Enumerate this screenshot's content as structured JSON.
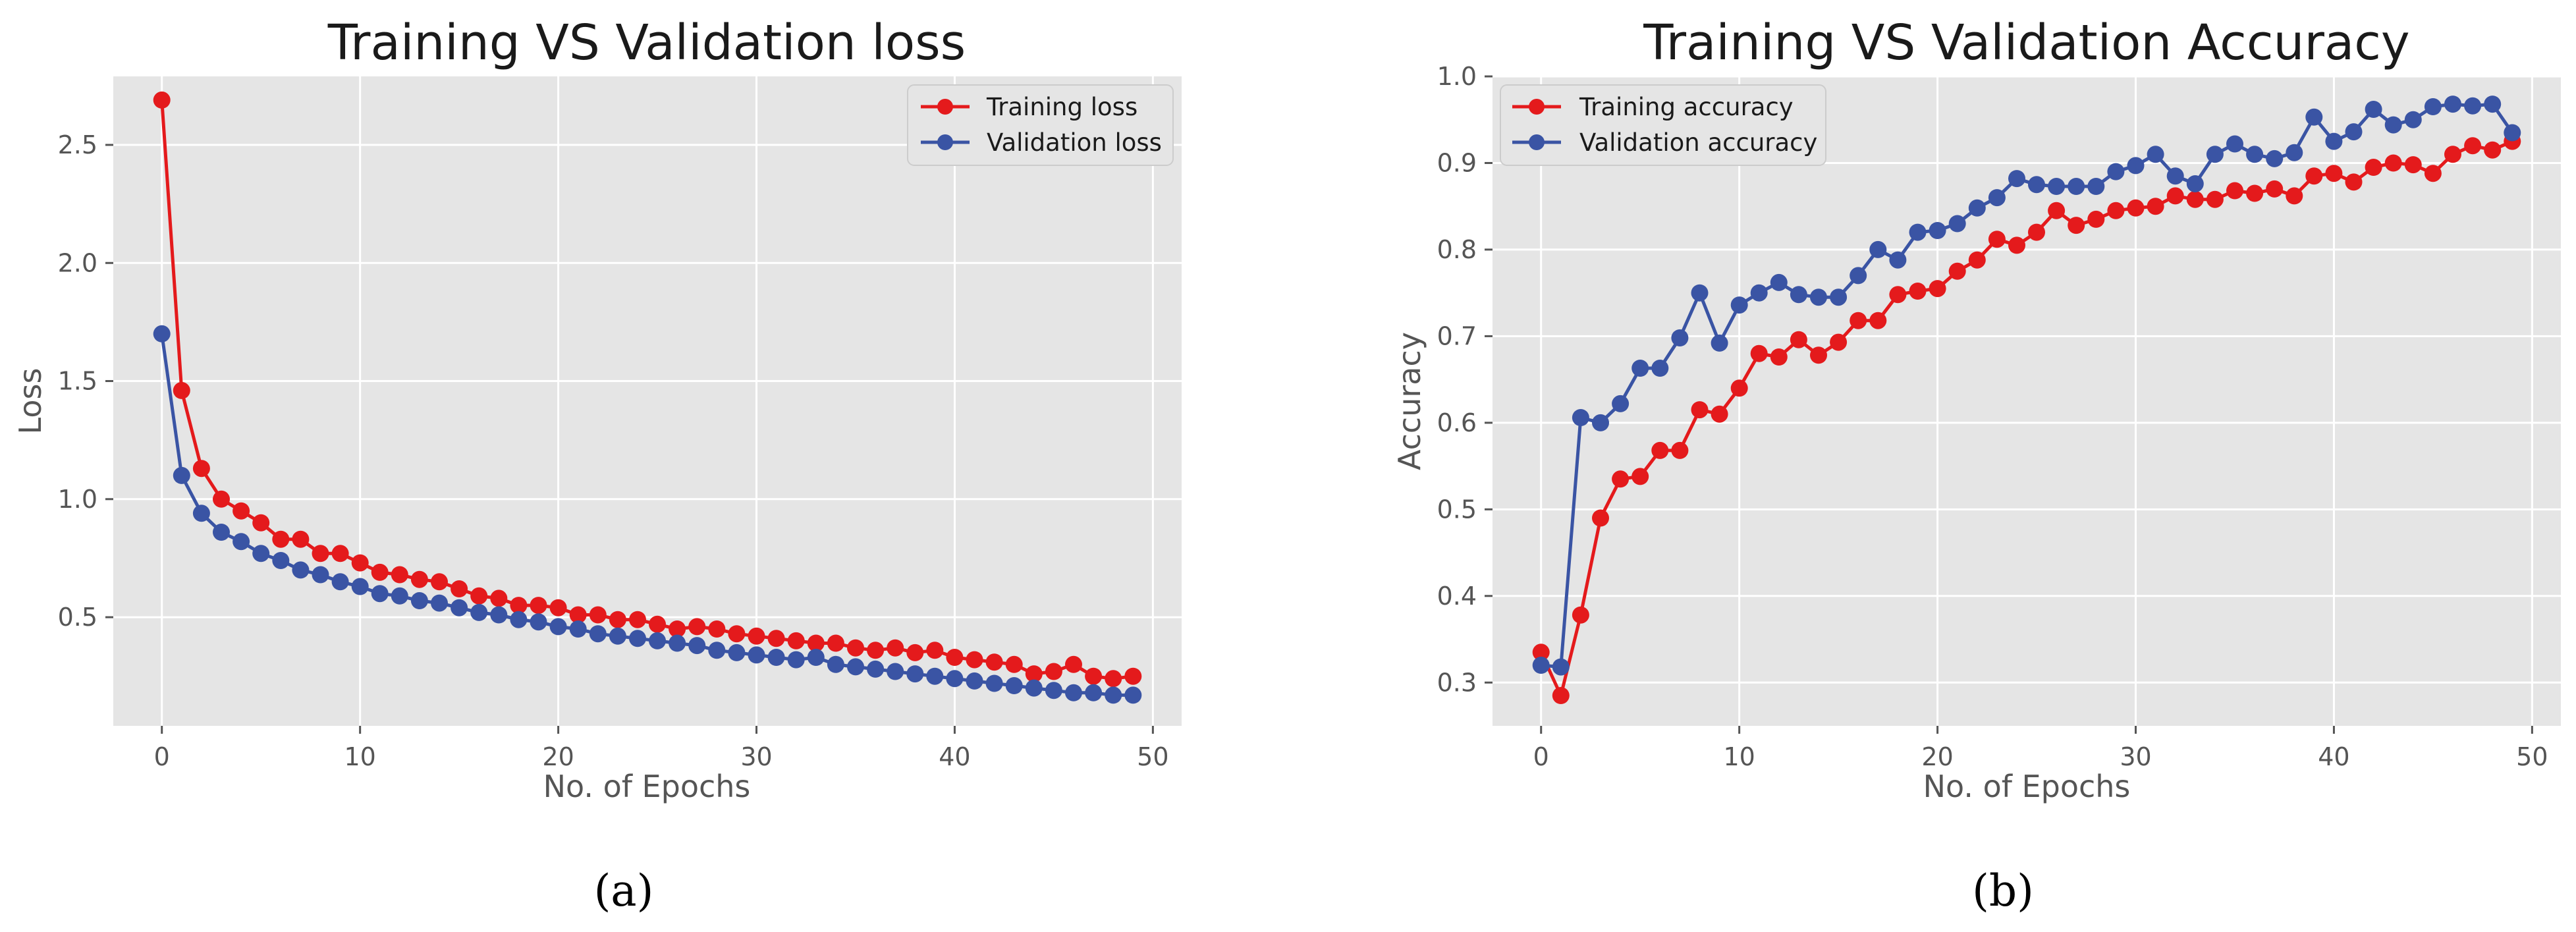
{
  "chart_data": [
    {
      "type": "line",
      "title": "Training VS Validation loss",
      "xlabel": "No. of Epochs",
      "ylabel": "Loss",
      "xlim": [
        -2.45,
        51.45
      ],
      "ylim": [
        0.04,
        2.79
      ],
      "xticks": [
        0,
        10,
        20,
        30,
        40,
        50
      ],
      "yticks": [
        0.5,
        1.0,
        1.5,
        2.0,
        2.5
      ],
      "ytick_labels": [
        "0.5",
        "1.0",
        "1.5",
        "2.0",
        "2.5"
      ],
      "grid": true,
      "legend_position": "top-right",
      "caption": "(a)",
      "series": [
        {
          "name": "Training loss",
          "color": "#e41a1c",
          "x": [
            0,
            1,
            2,
            3,
            4,
            5,
            6,
            7,
            8,
            9,
            10,
            11,
            12,
            13,
            14,
            15,
            16,
            17,
            18,
            19,
            20,
            21,
            22,
            23,
            24,
            25,
            26,
            27,
            28,
            29,
            30,
            31,
            32,
            33,
            34,
            35,
            36,
            37,
            38,
            39,
            40,
            41,
            42,
            43,
            44,
            45,
            46,
            47,
            48,
            49
          ],
          "values": [
            2.69,
            1.46,
            1.13,
            1.0,
            0.95,
            0.9,
            0.83,
            0.83,
            0.77,
            0.77,
            0.73,
            0.69,
            0.68,
            0.66,
            0.65,
            0.62,
            0.59,
            0.58,
            0.55,
            0.55,
            0.54,
            0.51,
            0.51,
            0.49,
            0.49,
            0.47,
            0.45,
            0.46,
            0.45,
            0.43,
            0.42,
            0.41,
            0.4,
            0.39,
            0.39,
            0.37,
            0.36,
            0.37,
            0.35,
            0.36,
            0.33,
            0.32,
            0.31,
            0.3,
            0.26,
            0.27,
            0.3,
            0.25,
            0.24,
            0.25
          ]
        },
        {
          "name": "Validation loss",
          "color": "#3a54a4",
          "x": [
            0,
            1,
            2,
            3,
            4,
            5,
            6,
            7,
            8,
            9,
            10,
            11,
            12,
            13,
            14,
            15,
            16,
            17,
            18,
            19,
            20,
            21,
            22,
            23,
            24,
            25,
            26,
            27,
            28,
            29,
            30,
            31,
            32,
            33,
            34,
            35,
            36,
            37,
            38,
            39,
            40,
            41,
            42,
            43,
            44,
            45,
            46,
            47,
            48,
            49
          ],
          "values": [
            1.7,
            1.1,
            0.94,
            0.86,
            0.82,
            0.77,
            0.74,
            0.7,
            0.68,
            0.65,
            0.63,
            0.6,
            0.59,
            0.57,
            0.56,
            0.54,
            0.52,
            0.51,
            0.49,
            0.48,
            0.46,
            0.45,
            0.43,
            0.42,
            0.41,
            0.4,
            0.39,
            0.38,
            0.36,
            0.35,
            0.34,
            0.33,
            0.32,
            0.33,
            0.3,
            0.29,
            0.28,
            0.27,
            0.26,
            0.25,
            0.24,
            0.23,
            0.22,
            0.21,
            0.2,
            0.19,
            0.18,
            0.18,
            0.17,
            0.17
          ]
        }
      ]
    },
    {
      "type": "line",
      "title": "Training VS Validation Accuracy",
      "xlabel": "No. of Epochs",
      "ylabel": "Accuracy",
      "xlim": [
        -2.45,
        51.45
      ],
      "ylim": [
        0.25,
        1.0
      ],
      "xticks": [
        0,
        10,
        20,
        30,
        40,
        50
      ],
      "yticks": [
        0.3,
        0.4,
        0.5,
        0.6,
        0.7,
        0.8,
        0.9,
        1.0
      ],
      "ytick_labels": [
        "0.3",
        "0.4",
        "0.5",
        "0.6",
        "0.7",
        "0.8",
        "0.9",
        "1.0"
      ],
      "grid": true,
      "legend_position": "top-left",
      "caption": "(b)",
      "series": [
        {
          "name": "Training accuracy",
          "color": "#e41a1c",
          "x": [
            0,
            1,
            2,
            3,
            4,
            5,
            6,
            7,
            8,
            9,
            10,
            11,
            12,
            13,
            14,
            15,
            16,
            17,
            18,
            19,
            20,
            21,
            22,
            23,
            24,
            25,
            26,
            27,
            28,
            29,
            30,
            31,
            32,
            33,
            34,
            35,
            36,
            37,
            38,
            39,
            40,
            41,
            42,
            43,
            44,
            45,
            46,
            47,
            48,
            49
          ],
          "values": [
            0.335,
            0.285,
            0.378,
            0.49,
            0.535,
            0.538,
            0.568,
            0.568,
            0.615,
            0.61,
            0.64,
            0.68,
            0.676,
            0.696,
            0.678,
            0.693,
            0.718,
            0.718,
            0.748,
            0.752,
            0.755,
            0.775,
            0.788,
            0.812,
            0.805,
            0.82,
            0.845,
            0.828,
            0.835,
            0.845,
            0.848,
            0.85,
            0.862,
            0.858,
            0.858,
            0.868,
            0.865,
            0.87,
            0.862,
            0.885,
            0.888,
            0.878,
            0.895,
            0.9,
            0.898,
            0.888,
            0.91,
            0.92,
            0.915,
            0.925
          ]
        },
        {
          "name": "Validation accuracy",
          "color": "#3a54a4",
          "x": [
            0,
            1,
            2,
            3,
            4,
            5,
            6,
            7,
            8,
            9,
            10,
            11,
            12,
            13,
            14,
            15,
            16,
            17,
            18,
            19,
            20,
            21,
            22,
            23,
            24,
            25,
            26,
            27,
            28,
            29,
            30,
            31,
            32,
            33,
            34,
            35,
            36,
            37,
            38,
            39,
            40,
            41,
            42,
            43,
            44,
            45,
            46,
            47,
            48,
            49
          ],
          "values": [
            0.32,
            0.318,
            0.606,
            0.6,
            0.622,
            0.663,
            0.663,
            0.698,
            0.75,
            0.692,
            0.736,
            0.75,
            0.762,
            0.748,
            0.745,
            0.745,
            0.77,
            0.8,
            0.788,
            0.82,
            0.822,
            0.83,
            0.848,
            0.86,
            0.882,
            0.875,
            0.873,
            0.873,
            0.873,
            0.89,
            0.897,
            0.91,
            0.885,
            0.876,
            0.91,
            0.922,
            0.91,
            0.905,
            0.912,
            0.953,
            0.925,
            0.936,
            0.962,
            0.944,
            0.95,
            0.965,
            0.968,
            0.966,
            0.968,
            0.935
          ]
        }
      ]
    }
  ]
}
